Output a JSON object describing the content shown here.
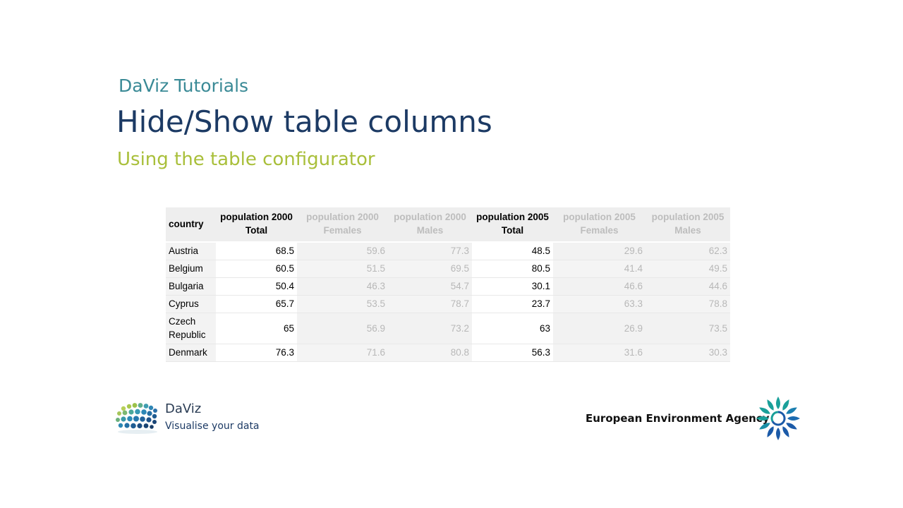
{
  "header": {
    "kicker": "DaViz Tutorials",
    "title": "Hide/Show table columns",
    "subtitle": "Using the table configurator"
  },
  "table": {
    "columns": [
      {
        "line1": "country",
        "line2": "",
        "visible": true
      },
      {
        "line1": "population 2000",
        "line2": "Total",
        "visible": true
      },
      {
        "line1": "population 2000",
        "line2": "Females",
        "visible": false
      },
      {
        "line1": "population 2000",
        "line2": "Males",
        "visible": false
      },
      {
        "line1": "population 2005",
        "line2": "Total",
        "visible": true
      },
      {
        "line1": "population 2005",
        "line2": "Females",
        "visible": false
      },
      {
        "line1": "population 2005",
        "line2": "Males",
        "visible": false
      }
    ],
    "rows": [
      [
        "Austria",
        "68.5",
        "59.6",
        "77.3",
        "48.5",
        "29.6",
        "62.3"
      ],
      [
        "Belgium",
        "60.5",
        "51.5",
        "69.5",
        "80.5",
        "41.4",
        "49.5"
      ],
      [
        "Bulgaria",
        "50.4",
        "46.3",
        "54.7",
        "30.1",
        "46.6",
        "44.6"
      ],
      [
        "Cyprus",
        "65.7",
        "53.5",
        "78.7",
        "23.7",
        "63.3",
        "78.8"
      ],
      [
        "Czech Republic",
        "65",
        "56.9",
        "73.2",
        "63",
        "26.9",
        "73.5"
      ],
      [
        "Denmark",
        "76.3",
        "71.6",
        "80.8",
        "56.3",
        "31.6",
        "30.3"
      ]
    ],
    "hidden_text_color": "#b8b8b8",
    "header_background": "#eeeeee"
  },
  "footer": {
    "daviz_name": "DaViz",
    "daviz_tagline": "Visualise your data",
    "daviz_icon": "daviz-dots-icon",
    "eea_name": "European Environment Agency",
    "eea_icon": "eea-flower-icon"
  },
  "colors": {
    "kicker": "#3a8a96",
    "title": "#1c3a64",
    "subtitle": "#a9bf3a",
    "eea_teal": "#1aa09a",
    "eea_blue": "#1b5aa8"
  }
}
